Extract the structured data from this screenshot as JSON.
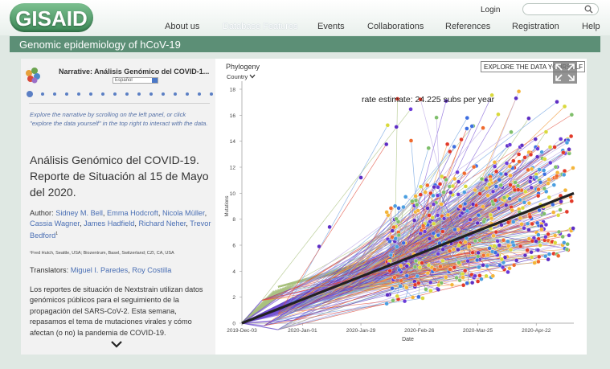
{
  "header": {
    "logo_text": "GISAID",
    "login": "Login",
    "search_placeholder": "",
    "nav": [
      "About us",
      "Database Features",
      "Events",
      "Collaborations",
      "References",
      "Registration",
      "Help"
    ],
    "active_nav": "Database Features"
  },
  "page_title": "Genomic epidemiology of hCoV-19",
  "narrative": {
    "title": "Narrative: Análisis Genómico del COVID-1...",
    "select_value": "Español",
    "slide_count": 16,
    "active_slide": 0,
    "intro": "Explore the narrative by scrolling on the left panel, or click \"explore the data yourself\" in the top right to interact with the data.",
    "heading": "Análisis Genómico del COVID-19. Reporte de Situación al 15 de Mayo del 2020.",
    "author_label": "Author:",
    "authors": [
      "Sidney M. Bell",
      "Emma Hodcroft",
      "Nicola Müller",
      "Cassia Wagner",
      "James Hadfield",
      "Richard Neher",
      "Trevor Bedford"
    ],
    "affiliation": "¹Fred Hutch, Seattle, USA; Biozentrum, Basel, Switzerland; CZI, CA, USA",
    "translators_label": "Translators:",
    "translators": [
      "Miguel I. Paredes",
      "Roy Costilla"
    ],
    "body": "Los reportes de situación de Nextstrain utilizan datos genómicos públicos para el seguimiento de la propagación del SARS-CoV-2. Esta semana, repasamos el tema de mutaciones virales y cómo afectan (o no) la pandemia de COVID-19."
  },
  "panel": {
    "title": "Phylogeny",
    "color_by": "Country",
    "explore_button": "EXPLORE THE DATA YOURSELF"
  },
  "chart_data": {
    "type": "scatter",
    "title": "rate estimate: 24.225 subs per year",
    "xlabel": "Date",
    "ylabel": "Mutations",
    "x_ticks": [
      "2019-Dec-03",
      "2020-Jan-01",
      "2020-Jan-29",
      "2020-Feb-26",
      "2020-Mar-25",
      "2020-Apr-22"
    ],
    "x_range": [
      "2019-12-03",
      "2020-05-10"
    ],
    "y_ticks": [
      0,
      2,
      4,
      6,
      8,
      10,
      12,
      14,
      16,
      18
    ],
    "ylim": [
      0,
      18
    ],
    "regression": {
      "start": {
        "date": "2019-12-03",
        "mutations": 0
      },
      "end": {
        "date": "2020-05-10",
        "mutations": 10
      }
    },
    "tip_colors": [
      "#5e2ec4",
      "#6a3bd8",
      "#3d6ee0",
      "#4a9ee0",
      "#7fbf6b",
      "#d9d93c",
      "#f4b53a",
      "#ef6a2e",
      "#e23a2a"
    ],
    "branch_colors": [
      "#5b3cc4",
      "#7b57d6",
      "#e24b3a",
      "#f29a3a",
      "#6da2e0",
      "#b9a6e6",
      "#a8c07e"
    ]
  }
}
